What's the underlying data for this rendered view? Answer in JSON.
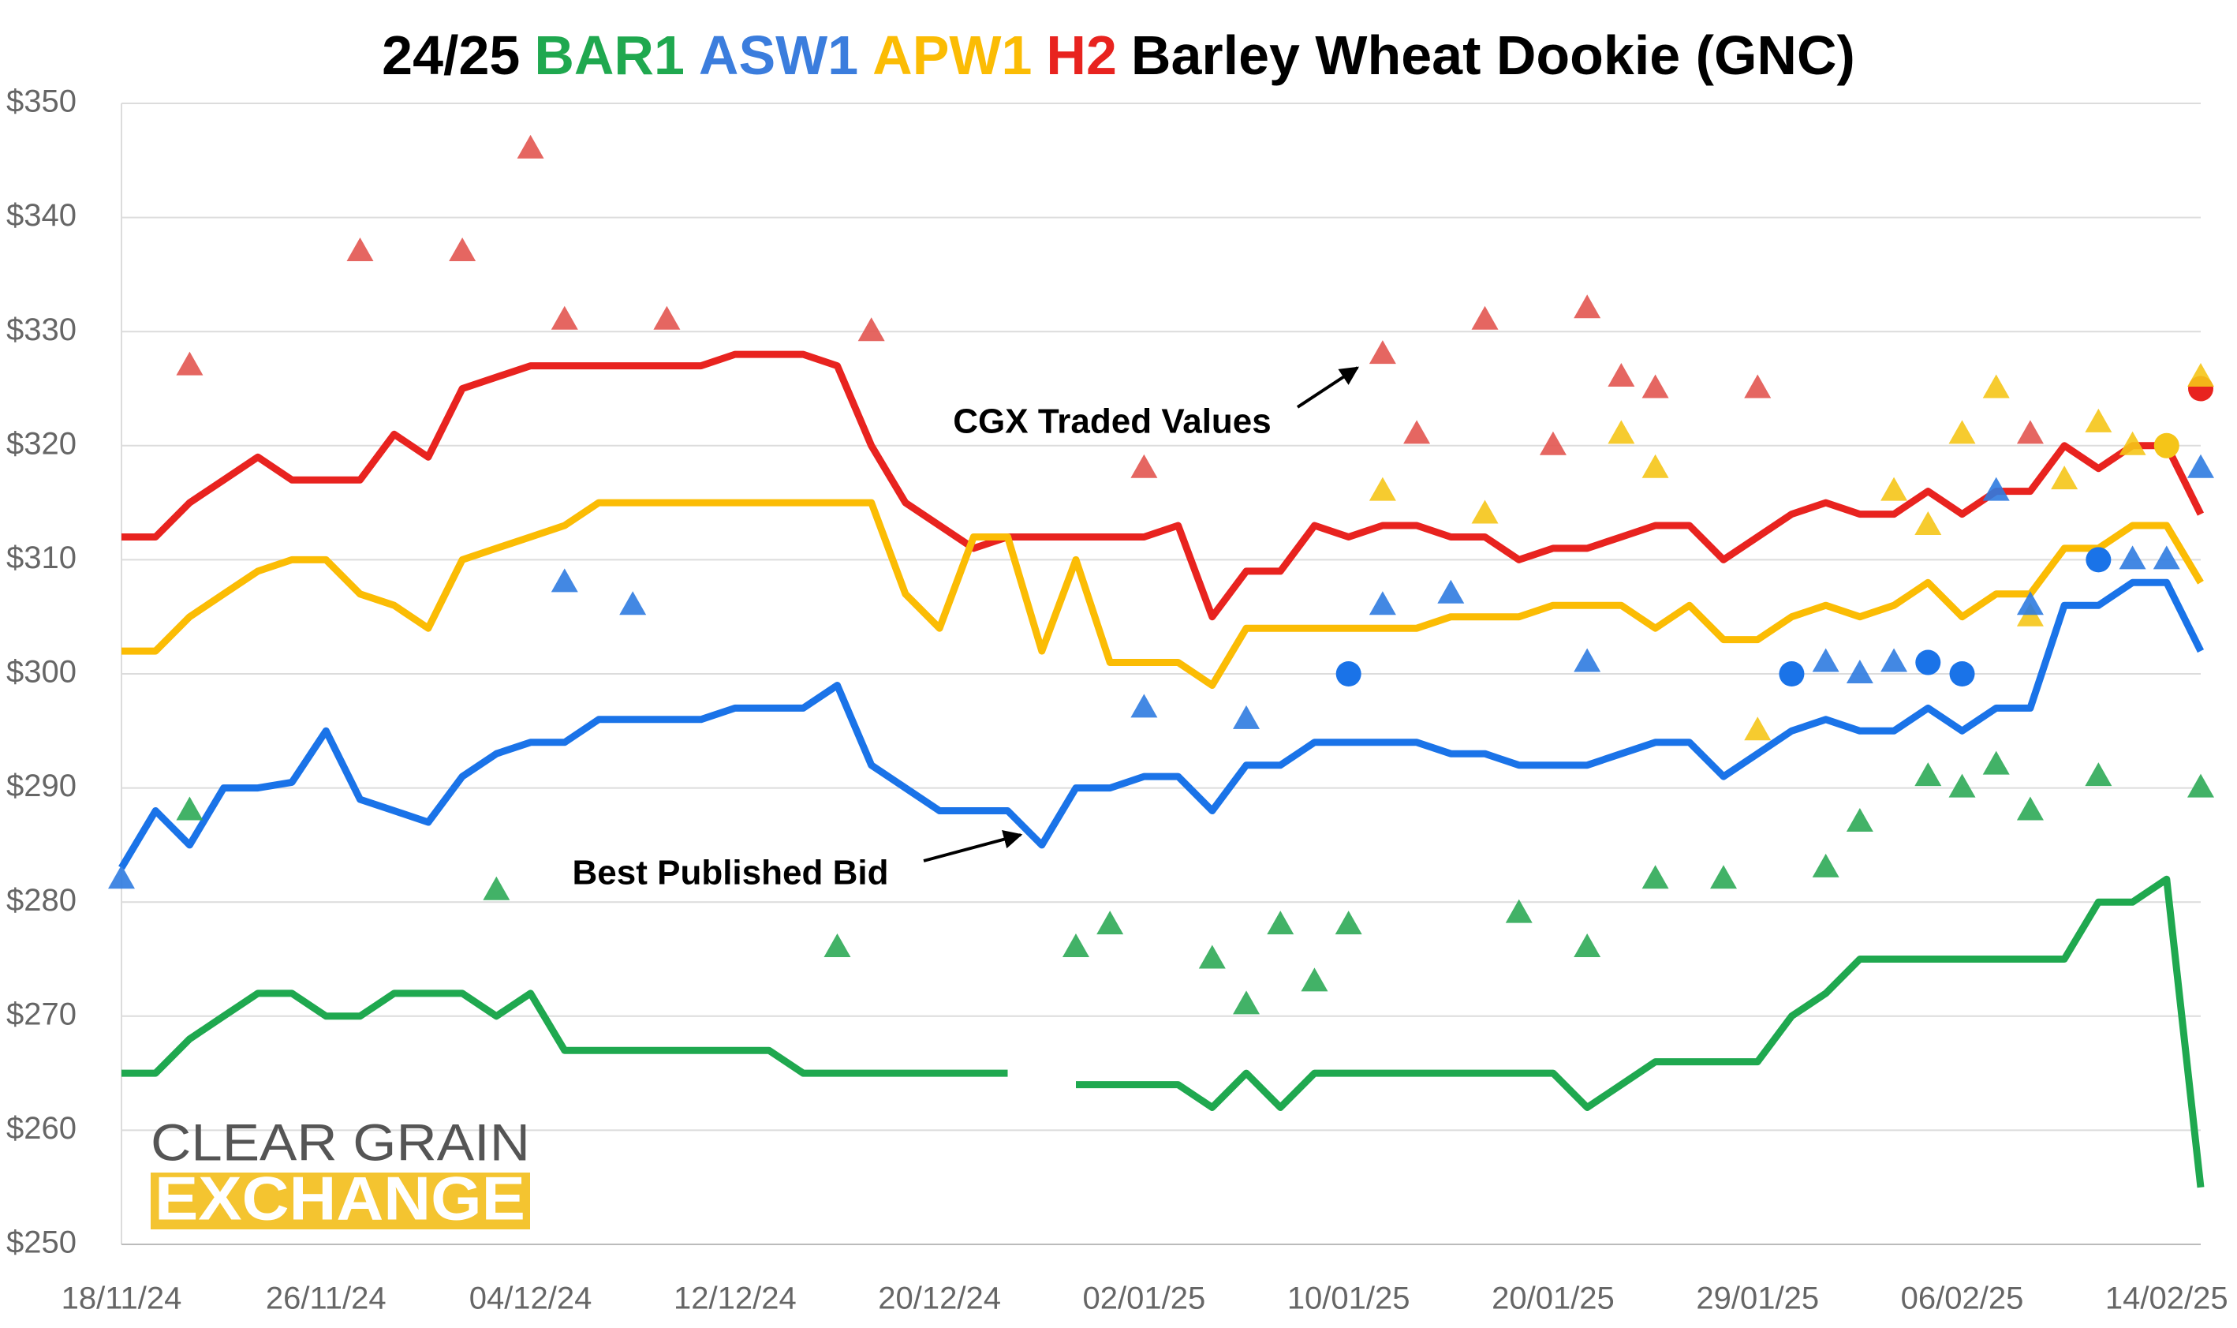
{
  "chart_data": {
    "type": "line",
    "title": [
      {
        "text": "24/25",
        "color": "#000000"
      },
      {
        "text": "BAR1",
        "color": "#1fa84f"
      },
      {
        "text": "ASW1",
        "color": "#3b7ddd"
      },
      {
        "text": "APW1",
        "color": "#fbbc04"
      },
      {
        "text": "H2",
        "color": "#e8231f"
      },
      {
        "text": "Barley Wheat Dookie (GNC)",
        "color": "#000000"
      }
    ],
    "annotations": [
      "CGX Traded Values",
      "Best Published Bid"
    ],
    "logo": [
      "CLEAR GRAIN",
      "EXCHANGE"
    ],
    "categories": [
      "18/11/24",
      null,
      null,
      null,
      null,
      null,
      "26/11/24",
      null,
      null,
      null,
      null,
      null,
      "04/12/24",
      null,
      null,
      null,
      null,
      null,
      "12/12/24",
      null,
      null,
      null,
      null,
      null,
      "20/12/24",
      null,
      null,
      null,
      null,
      null,
      "02/01/25",
      null,
      null,
      null,
      null,
      null,
      "10/01/25",
      null,
      null,
      null,
      null,
      null,
      "20/01/25",
      null,
      null,
      null,
      null,
      null,
      "29/01/25",
      null,
      null,
      null,
      null,
      null,
      "06/02/25",
      null,
      null,
      null,
      null,
      null,
      "14/02/25",
      null
    ],
    "ylim": [
      250,
      350
    ],
    "yticks": [
      {
        "value": 250,
        "label": "$250"
      },
      {
        "value": 260,
        "label": "$260"
      },
      {
        "value": 270,
        "label": "$270"
      },
      {
        "value": 280,
        "label": "$280"
      },
      {
        "value": 290,
        "label": "$290"
      },
      {
        "value": 300,
        "label": "$300"
      },
      {
        "value": 310,
        "label": "$310"
      },
      {
        "value": 320,
        "label": "$320"
      },
      {
        "value": 330,
        "label": "$330"
      },
      {
        "value": 340,
        "label": "$340"
      },
      {
        "value": 350,
        "label": "$350"
      }
    ],
    "grid": true,
    "series": [
      {
        "marker": "line",
        "color": "#e8231f",
        "values": [
          312,
          312,
          315,
          317,
          319,
          317,
          317,
          317,
          321,
          319,
          325,
          326,
          327,
          327,
          327,
          327,
          327,
          327,
          328,
          328,
          328,
          327,
          320,
          315,
          313,
          311,
          312,
          312,
          312,
          312,
          312,
          313,
          305,
          309,
          309,
          313,
          312,
          313,
          313,
          312,
          312,
          310,
          311,
          311,
          312,
          313,
          313,
          310,
          312,
          314,
          315,
          314,
          314,
          316,
          314,
          316,
          316,
          320,
          318,
          320,
          320,
          314
        ]
      },
      {
        "marker": "line",
        "color": "#fbbc04",
        "values": [
          302,
          302,
          305,
          307,
          309,
          310,
          310,
          307,
          306,
          304,
          310,
          311,
          312,
          313,
          315,
          315,
          315,
          315,
          315,
          315,
          315,
          315,
          315,
          307,
          304,
          312,
          312,
          302,
          310,
          301,
          301,
          301,
          299,
          304,
          304,
          304,
          304,
          304,
          304,
          305,
          305,
          305,
          306,
          306,
          306,
          304,
          306,
          303,
          303,
          305,
          306,
          305,
          306,
          308,
          305,
          307,
          307,
          311,
          311,
          313,
          313,
          308
        ]
      },
      {
        "marker": "line",
        "color": "#1a73e8",
        "values": [
          283,
          288,
          285,
          290,
          290,
          290.5,
          295,
          289,
          288,
          287,
          291,
          293,
          294,
          294,
          296,
          296,
          296,
          296,
          297,
          297,
          297,
          299,
          292,
          290,
          288,
          288,
          288,
          285,
          290,
          290,
          291,
          291,
          288,
          292,
          292,
          294,
          294,
          294,
          294,
          293,
          293,
          292,
          292,
          292,
          293,
          294,
          294,
          291,
          293,
          295,
          296,
          295,
          295,
          297,
          295,
          297,
          297,
          306,
          306,
          308,
          308,
          302
        ]
      },
      {
        "marker": "line",
        "color": "#1fa84f",
        "values": [
          265,
          265,
          268,
          270,
          272,
          272,
          270,
          270,
          272,
          272,
          272,
          270,
          272,
          267,
          267,
          267,
          267,
          267,
          267,
          267,
          265,
          265,
          265,
          265,
          265,
          265,
          265,
          null,
          264,
          264,
          264,
          264,
          262,
          265,
          262,
          265,
          265,
          265,
          265,
          265,
          265,
          265,
          265,
          262,
          264,
          266,
          266,
          266,
          266,
          270,
          272,
          275,
          275,
          275,
          275,
          275,
          275,
          275,
          280,
          280,
          282,
          255
        ]
      },
      {
        "marker": "triangle",
        "color": "#e25550",
        "values": [
          null,
          null,
          327,
          null,
          null,
          null,
          null,
          337,
          null,
          null,
          337,
          null,
          346,
          331,
          null,
          null,
          331,
          null,
          null,
          null,
          null,
          null,
          330,
          null,
          null,
          null,
          null,
          null,
          null,
          null,
          318,
          null,
          null,
          null,
          null,
          null,
          null,
          328,
          321,
          null,
          331,
          null,
          320,
          332,
          326,
          325,
          null,
          null,
          325,
          null,
          null,
          null,
          null,
          null,
          null,
          null,
          321,
          null,
          null,
          null,
          null,
          null
        ]
      },
      {
        "marker": "circle",
        "color": "#e8231f",
        "values": [
          null,
          null,
          null,
          null,
          null,
          null,
          null,
          null,
          null,
          null,
          null,
          null,
          null,
          null,
          null,
          null,
          null,
          null,
          null,
          null,
          null,
          null,
          null,
          null,
          null,
          null,
          null,
          null,
          null,
          null,
          null,
          null,
          null,
          null,
          null,
          null,
          null,
          null,
          null,
          null,
          null,
          null,
          null,
          null,
          null,
          null,
          null,
          null,
          null,
          null,
          null,
          null,
          null,
          null,
          null,
          null,
          null,
          null,
          null,
          null,
          null,
          325
        ]
      },
      {
        "marker": "triangle",
        "color": "#f5c518",
        "values": [
          null,
          null,
          null,
          null,
          null,
          null,
          null,
          null,
          null,
          null,
          null,
          null,
          null,
          null,
          null,
          null,
          null,
          null,
          null,
          null,
          null,
          null,
          null,
          null,
          null,
          null,
          null,
          null,
          null,
          null,
          null,
          null,
          null,
          null,
          null,
          null,
          null,
          316,
          null,
          null,
          314,
          null,
          null,
          null,
          321,
          318,
          null,
          null,
          295,
          null,
          null,
          null,
          316,
          313,
          321,
          325,
          305,
          317,
          322,
          320,
          null,
          326
        ]
      },
      {
        "marker": "circle",
        "color": "#f5c518",
        "values": [
          null,
          null,
          null,
          null,
          null,
          null,
          null,
          null,
          null,
          null,
          null,
          null,
          null,
          null,
          null,
          null,
          null,
          null,
          null,
          null,
          null,
          null,
          null,
          null,
          null,
          null,
          null,
          null,
          null,
          null,
          null,
          null,
          null,
          null,
          null,
          null,
          null,
          null,
          null,
          null,
          null,
          null,
          null,
          null,
          null,
          null,
          null,
          null,
          null,
          null,
          null,
          null,
          null,
          null,
          null,
          null,
          null,
          null,
          null,
          null,
          320,
          null
        ]
      },
      {
        "marker": "triangle",
        "color": "#2f7be0",
        "values": [
          282,
          null,
          null,
          null,
          null,
          null,
          null,
          null,
          null,
          null,
          null,
          null,
          null,
          308,
          null,
          306,
          null,
          null,
          null,
          null,
          null,
          null,
          null,
          null,
          null,
          null,
          null,
          null,
          null,
          null,
          297,
          null,
          null,
          296,
          null,
          null,
          null,
          306,
          null,
          307,
          null,
          null,
          null,
          301,
          null,
          null,
          null,
          null,
          null,
          null,
          301,
          300,
          301,
          null,
          null,
          316,
          306,
          null,
          null,
          310,
          310,
          318
        ]
      },
      {
        "marker": "circle",
        "color": "#1a73e8",
        "values": [
          null,
          null,
          null,
          null,
          null,
          null,
          null,
          null,
          null,
          null,
          null,
          null,
          null,
          null,
          null,
          null,
          null,
          null,
          null,
          null,
          null,
          null,
          null,
          null,
          null,
          null,
          null,
          null,
          null,
          null,
          null,
          null,
          null,
          null,
          null,
          null,
          300,
          null,
          null,
          null,
          null,
          null,
          null,
          null,
          null,
          null,
          null,
          null,
          null,
          300,
          null,
          null,
          null,
          301,
          300,
          null,
          null,
          null,
          310,
          null,
          null,
          null
        ]
      },
      {
        "marker": "triangle",
        "color": "#2eaa57",
        "values": [
          null,
          null,
          288,
          null,
          null,
          null,
          null,
          null,
          null,
          null,
          null,
          281,
          null,
          null,
          null,
          null,
          null,
          null,
          null,
          null,
          null,
          276,
          null,
          null,
          null,
          null,
          null,
          null,
          276,
          278,
          null,
          null,
          275,
          271,
          278,
          273,
          278,
          null,
          null,
          null,
          null,
          279,
          null,
          276,
          null,
          282,
          null,
          282,
          null,
          null,
          283,
          287,
          null,
          291,
          290,
          292,
          288,
          null,
          291,
          null,
          null,
          290
        ]
      }
    ]
  }
}
